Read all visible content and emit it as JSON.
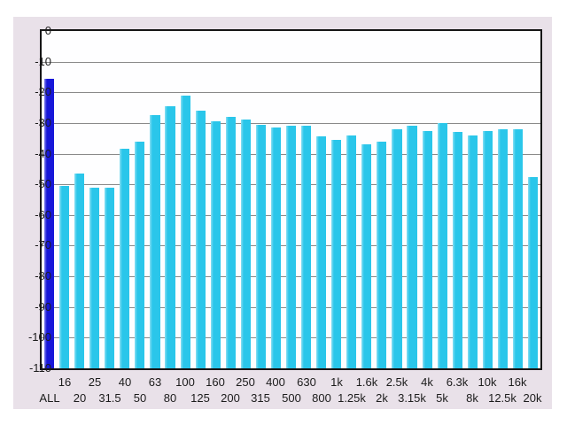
{
  "colors": {
    "page_bg": "#ffffff",
    "panel_bg": "#e9e1e9",
    "plot_bg": "#fefeff",
    "grid": "#8a8a8a",
    "border": "#161616",
    "text": "#1c1c1c",
    "bar": "#2ac6ea",
    "bar_highlight": "rgba(255,255,255,0.45)",
    "all_bar": "#1717d9"
  },
  "chart_data": {
    "type": "bar",
    "title": "",
    "ylabel": "",
    "xlabel": "",
    "ylim": [
      -110,
      0
    ],
    "grid": true,
    "legend": "none",
    "y_tick_labels": [
      "0",
      "-10",
      "-20",
      "-30",
      "-40",
      "-50",
      "-60",
      "-70",
      "-80",
      "-90",
      "-100",
      "-110"
    ],
    "categories": [
      "ALL",
      "16",
      "20",
      "25",
      "31.5",
      "40",
      "50",
      "63",
      "80",
      "100",
      "125",
      "160",
      "200",
      "250",
      "315",
      "400",
      "500",
      "630",
      "800",
      "1k",
      "1.25k",
      "1.6k",
      "2k",
      "2.5k",
      "3.15k",
      "4k",
      "5k",
      "6.3k",
      "8k",
      "10k",
      "12.5k",
      "16k",
      "20k"
    ],
    "values": [
      -15.5,
      -50.5,
      -46.5,
      -51,
      -51,
      -38.5,
      -36,
      -27.5,
      -24.5,
      -21,
      -26,
      -29.5,
      -28,
      -29,
      -30.5,
      -31.5,
      -31,
      -31,
      -34.5,
      -35.5,
      -34,
      -37,
      -36,
      -32,
      -31,
      -32.5,
      -30,
      -33,
      -34,
      -32.5,
      -32,
      -32,
      -47.5
    ],
    "highlighted_category": "ALL",
    "x_label_rows": "alternating-two-rows"
  }
}
